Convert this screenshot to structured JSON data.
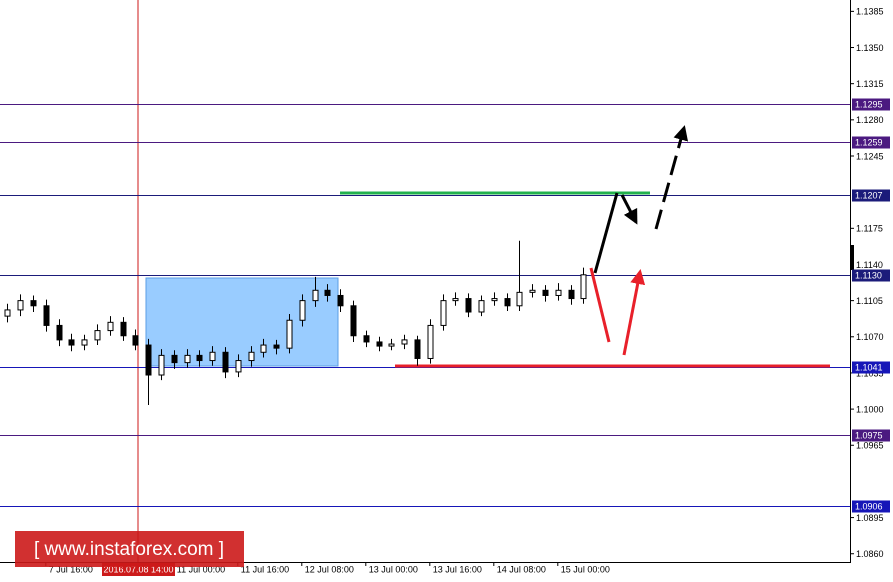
{
  "chart_data": {
    "type": "candlestick",
    "categories": [
      null,
      null,
      null,
      "7 Jul 16:00",
      null,
      null,
      null,
      null,
      null,
      null,
      null,
      null,
      null,
      "11 Jul 00:00",
      null,
      null,
      null,
      null,
      "11 Jul 16:00",
      null,
      null,
      null,
      null,
      "12 Jul 08:00",
      null,
      null,
      null,
      null,
      "13 Jul 00:00",
      null,
      null,
      null,
      null,
      "13 Jul 16:00",
      null,
      null,
      null,
      null,
      "14 Jul 08:00",
      null,
      null,
      null,
      null,
      "15 Jul 00:00",
      null,
      null
    ],
    "open": [
      1.109,
      1.1096,
      1.1105,
      1.11,
      1.1081,
      1.1067,
      1.1062,
      1.1067,
      1.1076,
      1.1084,
      1.1071,
      1.1062,
      1.1033,
      1.1052,
      1.1045,
      1.1052,
      1.1047,
      1.1055,
      1.1036,
      1.1047,
      1.1055,
      1.1062,
      1.1059,
      1.1086,
      1.1105,
      1.1115,
      1.111,
      1.11,
      1.1071,
      1.1065,
      1.1061,
      1.1063,
      1.1067,
      1.1049,
      1.1081,
      1.1105,
      1.1107,
      1.1094,
      1.1105,
      1.1107,
      1.11,
      1.1113,
      1.1115,
      1.111,
      1.1115,
      1.1107
    ],
    "high": [
      1.1102,
      1.1111,
      1.111,
      1.1106,
      1.1087,
      1.1073,
      1.1072,
      1.1082,
      1.109,
      1.1089,
      1.1077,
      1.1068,
      1.1058,
      1.1057,
      1.1058,
      1.1057,
      1.1061,
      1.106,
      1.1053,
      1.1061,
      1.1068,
      1.1067,
      1.1092,
      1.1111,
      1.1128,
      1.1121,
      1.1116,
      1.1105,
      1.1076,
      1.107,
      1.1068,
      1.1072,
      1.1071,
      1.1087,
      1.1111,
      1.1113,
      1.1112,
      1.111,
      1.1113,
      1.1112,
      1.1163,
      1.1121,
      1.112,
      1.1122,
      1.112,
      1.1137
    ],
    "low": [
      1.1084,
      1.109,
      1.1094,
      1.1075,
      1.1061,
      1.1056,
      1.1057,
      1.1062,
      1.1071,
      1.1066,
      1.1057,
      1.1004,
      1.1028,
      1.1039,
      1.104,
      1.1041,
      1.1042,
      1.103,
      1.1031,
      1.1041,
      1.105,
      1.1053,
      1.1054,
      1.108,
      1.1099,
      1.1104,
      1.1094,
      1.1065,
      1.106,
      1.1056,
      1.1057,
      1.1058,
      1.1042,
      1.1044,
      1.1076,
      1.11,
      1.1089,
      1.109,
      1.11,
      1.1095,
      1.1095,
      1.1108,
      1.1104,
      1.1105,
      1.1101,
      1.1102
    ],
    "close": [
      1.1096,
      1.1105,
      1.11,
      1.1081,
      1.1067,
      1.1062,
      1.1067,
      1.1076,
      1.1084,
      1.1071,
      1.1062,
      1.1033,
      1.1052,
      1.1045,
      1.1052,
      1.1047,
      1.1055,
      1.1036,
      1.1047,
      1.1055,
      1.1062,
      1.1059,
      1.1086,
      1.1105,
      1.1115,
      1.111,
      1.11,
      1.1071,
      1.1065,
      1.1061,
      1.1063,
      1.1067,
      1.1049,
      1.1081,
      1.1105,
      1.1107,
      1.1094,
      1.1105,
      1.1107,
      1.11,
      1.1113,
      1.1115,
      1.111,
      1.1115,
      1.1107,
      1.113
    ],
    "up_color": "#ffffff",
    "down_color": "#000000",
    "ylim": [
      1.0852,
      1.1396
    ],
    "yticks": [
      1.1385,
      {
        "value": 1.135,
        "label": "1.1350"
      },
      1.1315,
      {
        "value": 1.128,
        "label": "1.1280"
      },
      1.1245,
      1.1175,
      {
        "value": 1.114,
        "label": "1.1140"
      },
      1.1105,
      {
        "value": 1.107,
        "label": "1.1070"
      },
      1.1035,
      {
        "value": 1.1,
        "label": "1.1000"
      },
      1.0965,
      1.0895,
      {
        "value": 1.086,
        "label": "1.0860"
      }
    ],
    "grid": false,
    "levels": {
      "values": [
        1.1295,
        1.1259,
        1.1207,
        1.113,
        1.1041,
        1.0975,
        1.0906
      ],
      "value_labels": [
        "1.1295",
        "1.1259",
        "1.1207",
        "1.1130",
        "1.1041",
        "1.0975",
        "1.0906"
      ],
      "colors": [
        "#4b1a80",
        "#4b1a80",
        "#1b1b7a",
        "#1b1b7a",
        "#1616b8",
        "#4b1a80",
        "#1616b8"
      ]
    },
    "crosshair_label": "2016.07.08 14:00",
    "watermark": "[ www.instaforex.com ]"
  }
}
